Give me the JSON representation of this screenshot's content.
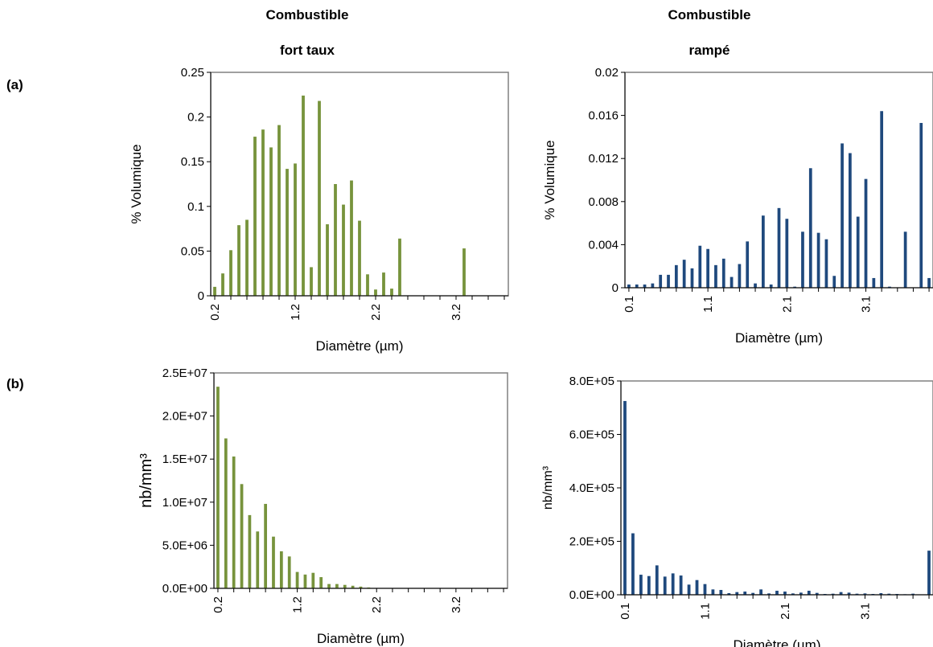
{
  "titles": {
    "left_line1": "Combustible",
    "left_line2": "fort taux",
    "right_line1": "Combustible",
    "right_line2": "rampé"
  },
  "row_labels": {
    "a": "(a)",
    "b": "(b)"
  },
  "colors": {
    "green": "#77933C",
    "blue": "#1F497D",
    "frame": "#808080"
  },
  "chart_data": [
    {
      "id": "a-left",
      "type": "bar",
      "xlabel": "Diamètre (µm)",
      "ylabel": "% Volumique",
      "ylim": [
        0,
        0.25
      ],
      "yticks": [
        0,
        0.05,
        0.1,
        0.15,
        0.2,
        0.25
      ],
      "ytick_labels": [
        "0",
        "0.05",
        "0.1",
        "0.15",
        "0.2",
        "0.25"
      ],
      "xlim": [
        0.15,
        3.85
      ],
      "xticks": [
        0.2,
        1.2,
        2.2,
        3.2
      ],
      "xtick_labels": [
        "0.2",
        "1.2",
        "2.2",
        "3.2"
      ],
      "color": "green",
      "x": [
        0.2,
        0.3,
        0.4,
        0.5,
        0.6,
        0.7,
        0.8,
        0.9,
        1.0,
        1.1,
        1.2,
        1.3,
        1.4,
        1.5,
        1.6,
        1.7,
        1.8,
        1.9,
        2.0,
        2.1,
        2.2,
        2.3,
        2.4,
        2.5,
        3.3
      ],
      "values": [
        0.01,
        0.025,
        0.051,
        0.079,
        0.085,
        0.178,
        0.186,
        0.166,
        0.191,
        0.142,
        0.148,
        0.224,
        0.032,
        0.218,
        0.08,
        0.125,
        0.102,
        0.129,
        0.084,
        0.024,
        0.007,
        0.026,
        0.008,
        0.064,
        0.053
      ]
    },
    {
      "id": "a-right",
      "type": "bar",
      "xlabel": "Diamètre (µm)",
      "ylabel": "% Volumique",
      "ylim": [
        0,
        0.02
      ],
      "yticks": [
        0,
        0.004,
        0.008,
        0.012,
        0.016,
        0.02
      ],
      "ytick_labels": [
        "0",
        "0.004",
        "0.008",
        "0.012",
        "0.016",
        "0.02"
      ],
      "xlim": [
        0.05,
        3.95
      ],
      "xticks": [
        0.1,
        1.1,
        2.1,
        3.1
      ],
      "xtick_labels": [
        "0.1",
        "1.1",
        "2.1",
        "3.1"
      ],
      "color": "blue",
      "x": [
        0.1,
        0.2,
        0.3,
        0.4,
        0.5,
        0.6,
        0.7,
        0.8,
        0.9,
        1.0,
        1.1,
        1.2,
        1.3,
        1.4,
        1.5,
        1.6,
        1.7,
        1.8,
        1.9,
        2.0,
        2.1,
        2.2,
        2.3,
        2.4,
        2.5,
        2.6,
        2.7,
        2.8,
        2.9,
        3.0,
        3.1,
        3.2,
        3.3,
        3.4,
        3.6,
        3.8,
        3.9
      ],
      "values": [
        0.0003,
        0.0003,
        0.0003,
        0.0004,
        0.0012,
        0.0012,
        0.0021,
        0.0026,
        0.0018,
        0.0039,
        0.0036,
        0.0021,
        0.0027,
        0.001,
        0.0022,
        0.0043,
        0.0004,
        0.0067,
        0.0003,
        0.0074,
        0.0064,
        0.0001,
        0.0052,
        0.0111,
        0.0051,
        0.0045,
        0.0011,
        0.0134,
        0.0125,
        0.0066,
        0.0101,
        0.0009,
        0.0164,
        0.0001,
        0.0052,
        0.0153,
        0.0009
      ]
    },
    {
      "id": "b-left",
      "type": "bar",
      "xlabel": "Diamètre (µm)",
      "ylabel": "nb/mm³",
      "ylim": [
        0,
        25000000
      ],
      "yticks": [
        0,
        5000000,
        10000000,
        15000000,
        20000000,
        25000000
      ],
      "ytick_labels": [
        "0.0E+00",
        "5.0E+06",
        "1.0E+07",
        "1.5E+07",
        "2.0E+07",
        "2.5E+07"
      ],
      "xlim": [
        0.15,
        3.85
      ],
      "xticks": [
        0.2,
        1.2,
        2.2,
        3.2
      ],
      "xtick_labels": [
        "0.2",
        "1.2",
        "2.2",
        "3.2"
      ],
      "color": "green",
      "x": [
        0.2,
        0.3,
        0.4,
        0.5,
        0.6,
        0.7,
        0.8,
        0.9,
        1.0,
        1.1,
        1.2,
        1.3,
        1.4,
        1.5,
        1.6,
        1.7,
        1.8,
        1.9,
        2.0,
        2.1
      ],
      "values": [
        23400000,
        17400000,
        15300000,
        12100000,
        8500000,
        6600000,
        9800000,
        6000000,
        4300000,
        3700000,
        1900000,
        1600000,
        1800000,
        1300000,
        500000,
        500000,
        400000,
        300000,
        200000,
        100000
      ]
    },
    {
      "id": "b-right",
      "type": "bar",
      "xlabel": "Diamètre (µm)",
      "ylabel": "nb/mm³",
      "ylim": [
        0,
        800000
      ],
      "yticks": [
        0,
        200000,
        400000,
        600000,
        800000
      ],
      "ytick_labels": [
        "0.0E+00",
        "2.0E+05",
        "4.0E+05",
        "6.0E+05",
        "8.0E+05"
      ],
      "xlim": [
        0.05,
        3.95
      ],
      "xticks": [
        0.1,
        1.1,
        2.1,
        3.1
      ],
      "xtick_labels": [
        "0.1",
        "1.1",
        "2.1",
        "3.1"
      ],
      "color": "blue",
      "x": [
        0.1,
        0.2,
        0.3,
        0.4,
        0.5,
        0.6,
        0.7,
        0.8,
        0.9,
        1.0,
        1.1,
        1.2,
        1.3,
        1.4,
        1.5,
        1.6,
        1.7,
        1.8,
        1.9,
        2.0,
        2.1,
        2.2,
        2.3,
        2.4,
        2.5,
        2.6,
        2.7,
        2.8,
        2.9,
        3.0,
        3.1,
        3.2,
        3.3,
        3.4,
        3.5,
        3.6,
        3.7,
        3.8,
        3.9
      ],
      "values": [
        725000,
        230000,
        75000,
        70000,
        110000,
        68000,
        80000,
        72000,
        38000,
        55000,
        40000,
        20000,
        18000,
        6000,
        10000,
        12000,
        7000,
        20000,
        5000,
        15000,
        12000,
        5000,
        8000,
        15000,
        7000,
        3000,
        4000,
        10000,
        8000,
        4000,
        5000,
        3000,
        6000,
        4000,
        3000,
        2000,
        4000,
        1000,
        165000
      ]
    }
  ]
}
